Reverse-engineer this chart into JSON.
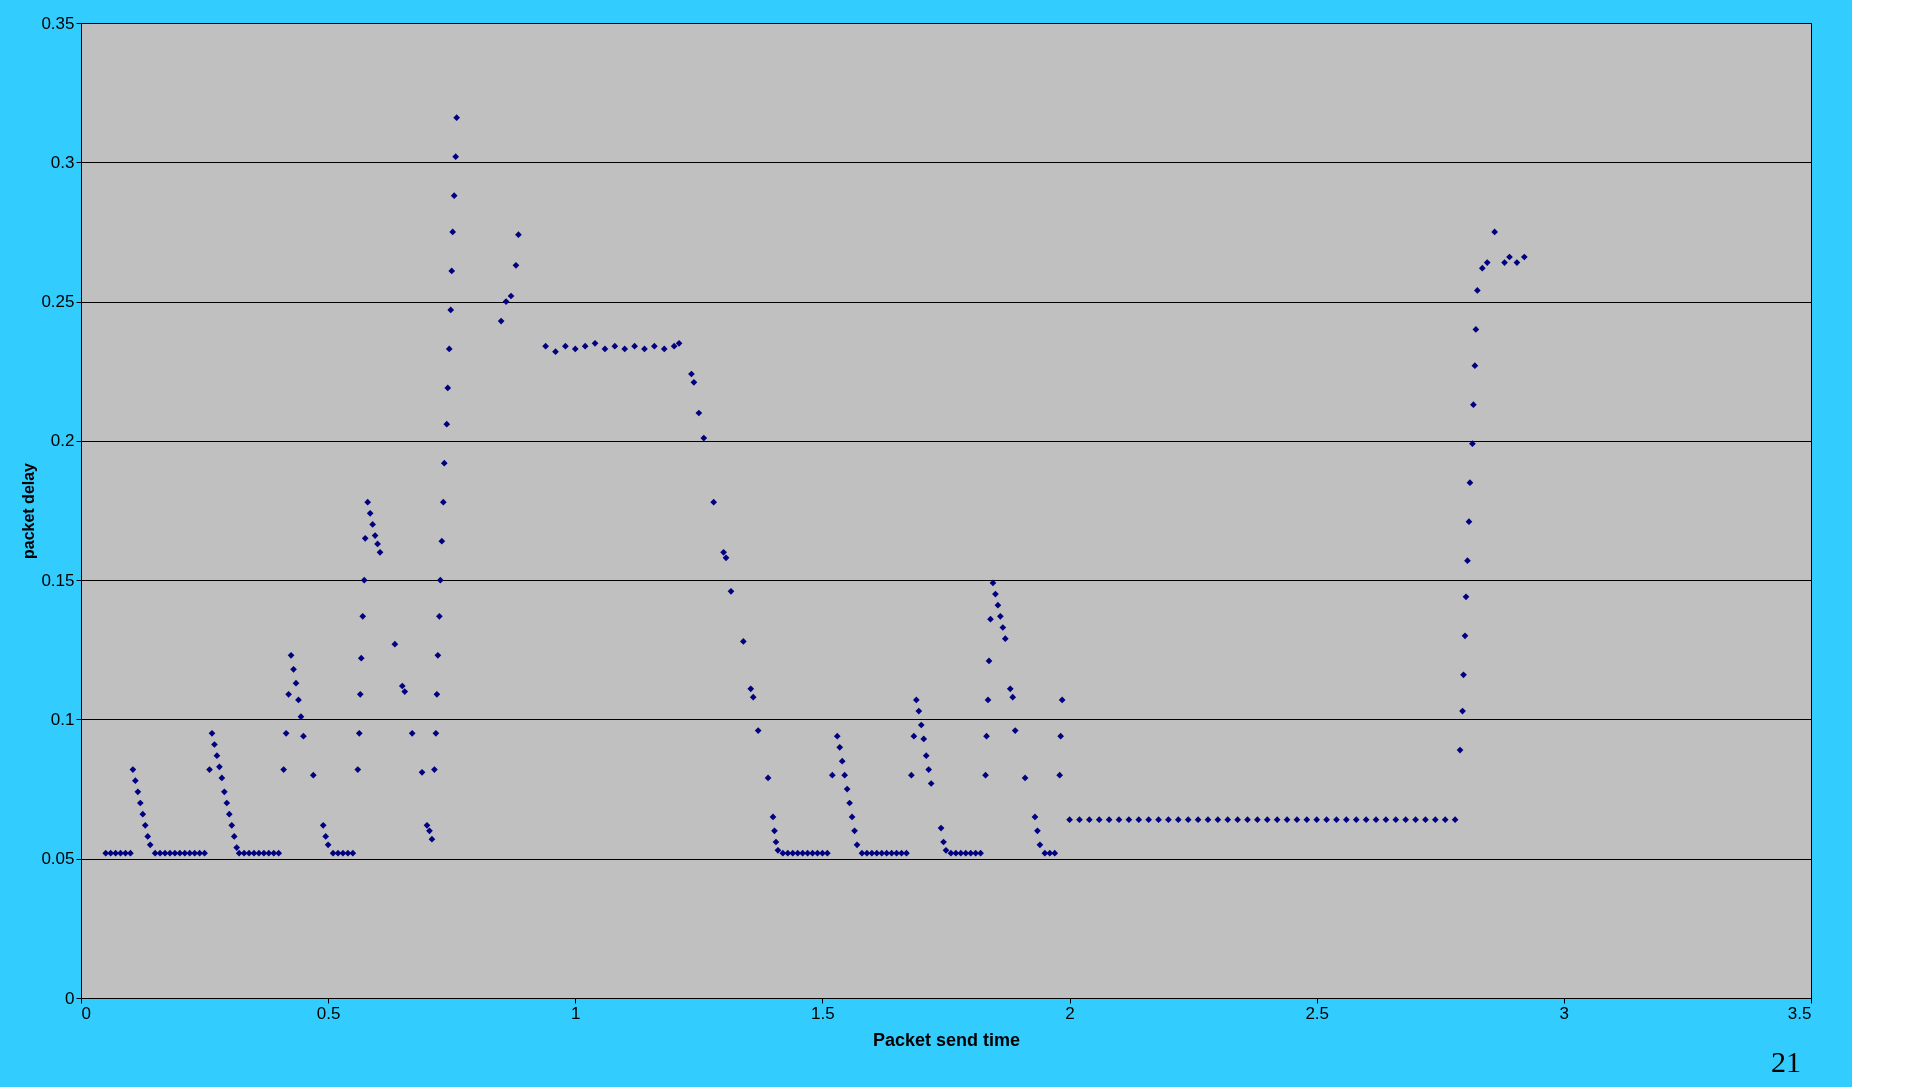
{
  "chart_data": {
    "type": "scatter",
    "xlabel": "Packet send time",
    "ylabel": "packet delay",
    "xlim": [
      0,
      3.5
    ],
    "xticks": [
      0,
      0.5,
      1,
      1.5,
      2,
      2.5,
      3,
      3.5
    ],
    "ylim": [
      0,
      0.35
    ],
    "yticks": [
      0,
      0.05,
      0.1,
      0.15,
      0.2,
      0.25,
      0.3,
      0.35
    ],
    "grid": "y",
    "marker": "diamond",
    "annotations": [
      "21"
    ],
    "series": [
      {
        "color": "#000080",
        "x": [
          0.05,
          0.06,
          0.07,
          0.08,
          0.09,
          0.1,
          0.105,
          0.11,
          0.115,
          0.12,
          0.125,
          0.13,
          0.135,
          0.14,
          0.15,
          0.16,
          0.17,
          0.18,
          0.19,
          0.2,
          0.21,
          0.22,
          0.23,
          0.24,
          0.25,
          0.26,
          0.265,
          0.27,
          0.275,
          0.28,
          0.285,
          0.29,
          0.295,
          0.3,
          0.305,
          0.31,
          0.315,
          0.32,
          0.33,
          0.34,
          0.35,
          0.36,
          0.37,
          0.38,
          0.39,
          0.4,
          0.41,
          0.415,
          0.42,
          0.425,
          0.43,
          0.435,
          0.44,
          0.445,
          0.45,
          0.47,
          0.49,
          0.495,
          0.5,
          0.51,
          0.52,
          0.53,
          0.54,
          0.55,
          0.56,
          0.563,
          0.565,
          0.567,
          0.57,
          0.573,
          0.575,
          0.58,
          0.585,
          0.59,
          0.595,
          0.6,
          0.605,
          0.635,
          0.65,
          0.655,
          0.67,
          0.69,
          0.7,
          0.705,
          0.71,
          0.715,
          0.718,
          0.72,
          0.722,
          0.725,
          0.727,
          0.73,
          0.733,
          0.735,
          0.74,
          0.742,
          0.745,
          0.748,
          0.75,
          0.752,
          0.755,
          0.758,
          0.76,
          0.85,
          0.86,
          0.87,
          0.88,
          0.885,
          0.94,
          0.96,
          0.98,
          1.0,
          1.02,
          1.04,
          1.06,
          1.08,
          1.1,
          1.12,
          1.14,
          1.16,
          1.18,
          1.2,
          1.21,
          1.235,
          1.24,
          1.25,
          1.26,
          1.28,
          1.3,
          1.305,
          1.315,
          1.34,
          1.355,
          1.36,
          1.37,
          1.39,
          1.4,
          1.403,
          1.406,
          1.41,
          1.42,
          1.43,
          1.44,
          1.45,
          1.46,
          1.47,
          1.48,
          1.49,
          1.5,
          1.51,
          1.52,
          1.53,
          1.535,
          1.54,
          1.545,
          1.55,
          1.555,
          1.56,
          1.565,
          1.57,
          1.58,
          1.59,
          1.6,
          1.61,
          1.62,
          1.63,
          1.64,
          1.65,
          1.66,
          1.67,
          1.68,
          1.685,
          1.69,
          1.695,
          1.7,
          1.705,
          1.71,
          1.715,
          1.72,
          1.74,
          1.745,
          1.75,
          1.76,
          1.77,
          1.78,
          1.79,
          1.8,
          1.81,
          1.82,
          1.83,
          1.832,
          1.835,
          1.837,
          1.84,
          1.845,
          1.85,
          1.855,
          1.86,
          1.865,
          1.87,
          1.88,
          1.885,
          1.89,
          1.91,
          1.93,
          1.935,
          1.94,
          1.95,
          1.96,
          1.97,
          1.98,
          1.982,
          1.985,
          2.0,
          2.02,
          2.04,
          2.06,
          2.08,
          2.1,
          2.12,
          2.14,
          2.16,
          2.18,
          2.2,
          2.22,
          2.24,
          2.26,
          2.28,
          2.3,
          2.32,
          2.34,
          2.36,
          2.38,
          2.4,
          2.42,
          2.44,
          2.46,
          2.48,
          2.5,
          2.52,
          2.54,
          2.56,
          2.58,
          2.6,
          2.62,
          2.64,
          2.66,
          2.68,
          2.7,
          2.72,
          2.74,
          2.76,
          2.78,
          2.79,
          2.795,
          2.797,
          2.8,
          2.802,
          2.805,
          2.808,
          2.81,
          2.815,
          2.817,
          2.82,
          2.822,
          2.825,
          2.835,
          2.845,
          2.86,
          2.88,
          2.89,
          2.905,
          2.92
        ],
        "values": [
          0.052,
          0.052,
          0.052,
          0.052,
          0.052,
          0.052,
          0.082,
          0.078,
          0.074,
          0.07,
          0.066,
          0.062,
          0.058,
          0.055,
          0.052,
          0.052,
          0.052,
          0.052,
          0.052,
          0.052,
          0.052,
          0.052,
          0.052,
          0.052,
          0.052,
          0.082,
          0.095,
          0.091,
          0.087,
          0.083,
          0.079,
          0.074,
          0.07,
          0.066,
          0.062,
          0.058,
          0.054,
          0.052,
          0.052,
          0.052,
          0.052,
          0.052,
          0.052,
          0.052,
          0.052,
          0.052,
          0.082,
          0.095,
          0.109,
          0.123,
          0.118,
          0.113,
          0.107,
          0.101,
          0.094,
          0.08,
          0.062,
          0.058,
          0.055,
          0.052,
          0.052,
          0.052,
          0.052,
          0.052,
          0.082,
          0.095,
          0.109,
          0.122,
          0.137,
          0.15,
          0.165,
          0.178,
          0.174,
          0.17,
          0.166,
          0.163,
          0.16,
          0.127,
          0.112,
          0.11,
          0.095,
          0.081,
          0.062,
          0.06,
          0.057,
          0.082,
          0.095,
          0.109,
          0.123,
          0.137,
          0.15,
          0.164,
          0.178,
          0.192,
          0.206,
          0.219,
          0.233,
          0.247,
          0.261,
          0.275,
          0.288,
          0.302,
          0.316,
          0.243,
          0.25,
          0.252,
          0.263,
          0.274,
          0.234,
          0.232,
          0.234,
          0.233,
          0.234,
          0.235,
          0.233,
          0.234,
          0.233,
          0.234,
          0.233,
          0.234,
          0.233,
          0.234,
          0.235,
          0.224,
          0.221,
          0.21,
          0.201,
          0.178,
          0.16,
          0.158,
          0.146,
          0.128,
          0.111,
          0.108,
          0.096,
          0.079,
          0.065,
          0.06,
          0.056,
          0.053,
          0.052,
          0.052,
          0.052,
          0.052,
          0.052,
          0.052,
          0.052,
          0.052,
          0.052,
          0.052,
          0.08,
          0.094,
          0.09,
          0.085,
          0.08,
          0.075,
          0.07,
          0.065,
          0.06,
          0.055,
          0.052,
          0.052,
          0.052,
          0.052,
          0.052,
          0.052,
          0.052,
          0.052,
          0.052,
          0.052,
          0.08,
          0.094,
          0.107,
          0.103,
          0.098,
          0.093,
          0.087,
          0.082,
          0.077,
          0.061,
          0.056,
          0.053,
          0.052,
          0.052,
          0.052,
          0.052,
          0.052,
          0.052,
          0.052,
          0.08,
          0.094,
          0.107,
          0.121,
          0.136,
          0.149,
          0.145,
          0.141,
          0.137,
          0.133,
          0.129,
          0.111,
          0.108,
          0.096,
          0.079,
          0.065,
          0.06,
          0.055,
          0.052,
          0.052,
          0.052,
          0.08,
          0.094,
          0.107,
          0.064,
          0.064,
          0.064,
          0.064,
          0.064,
          0.064,
          0.064,
          0.064,
          0.064,
          0.064,
          0.064,
          0.064,
          0.064,
          0.064,
          0.064,
          0.064,
          0.064,
          0.064,
          0.064,
          0.064,
          0.064,
          0.064,
          0.064,
          0.064,
          0.064,
          0.064,
          0.064,
          0.064,
          0.064,
          0.064,
          0.064,
          0.064,
          0.064,
          0.064,
          0.064,
          0.064,
          0.064,
          0.064,
          0.064,
          0.064,
          0.089,
          0.103,
          0.116,
          0.13,
          0.144,
          0.157,
          0.171,
          0.185,
          0.199,
          0.213,
          0.227,
          0.24,
          0.254,
          0.262,
          0.264,
          0.275,
          0.264,
          0.266,
          0.264,
          0.266
        ]
      }
    ]
  }
}
